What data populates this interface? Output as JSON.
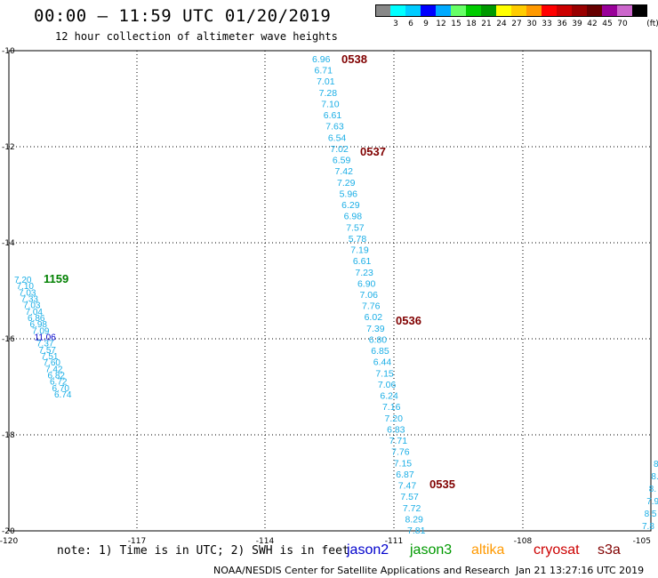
{
  "title": "00:00 – 11:59 UTC 01/20/2019",
  "subtitle": "12 hour collection of altimeter wave heights",
  "colorbar": {
    "colors": [
      "#888888",
      "#00ffff",
      "#00ccff",
      "#0000ff",
      "#00aaff",
      "#66ff66",
      "#00cc00",
      "#009900",
      "#ffff00",
      "#ffcc00",
      "#ff9900",
      "#ff0000",
      "#cc0000",
      "#990000",
      "#660000",
      "#990099",
      "#cc66cc",
      "#000000"
    ],
    "labels": [
      "3",
      "6",
      "9",
      "12",
      "15",
      "18",
      "21",
      "24",
      "27",
      "30",
      "33",
      "36",
      "39",
      "42",
      "45",
      "70"
    ],
    "unit": "(ft)"
  },
  "axes": {
    "lon_ticks": [
      "-120",
      "-117",
      "-114",
      "-111",
      "-108",
      "-105"
    ],
    "lat_ticks": [
      "-10",
      "-12",
      "-14",
      "-16",
      "-18",
      "-20"
    ]
  },
  "swaths": [
    {
      "color": "#1aaee6",
      "values": [
        "6.96",
        "6.71",
        "7.01",
        "7.28",
        "7.10",
        "6.61",
        "7.63",
        "6.54",
        "7.02",
        "6.59",
        "7.42",
        "7.29",
        "5.96",
        "6.29",
        "6.98",
        "7.57",
        "5.78",
        "7.19",
        "6.61",
        "7.23",
        "6.90",
        "7.06",
        "7.76",
        "6.02",
        "7.39",
        "6.80",
        "6.85",
        "6.44",
        "7.15",
        "7.06",
        "6.24",
        "7.16",
        "7.20",
        "6.83",
        "7.71",
        "7.76",
        "7.15",
        "6.87",
        "7.47",
        "7.57",
        "7.72",
        "8.29",
        "7.81"
      ]
    },
    {
      "color": "#1aaee6",
      "values": [
        "7.20",
        "7.10",
        "7.03",
        "7.33",
        "7.03",
        "7.04",
        "6.86",
        "6.98",
        "7.09",
        "11.06",
        "7.37",
        "7.57",
        "7.51",
        "7.60",
        "7.42",
        "6.82",
        "6.72",
        "6.70",
        "6.74"
      ]
    },
    {
      "color": "#1aaee6",
      "values": [
        "8.",
        "8.",
        "8.",
        "7.9",
        "8.5",
        "7.8"
      ]
    }
  ],
  "time_labels": [
    {
      "text": "0538",
      "color": "#800000"
    },
    {
      "text": "0537",
      "color": "#800000"
    },
    {
      "text": "0536",
      "color": "#800000"
    },
    {
      "text": "0535",
      "color": "#800000"
    },
    {
      "text": "1159",
      "color": "#008000"
    }
  ],
  "note": "note: 1) Time is in UTC; 2) SWH is in feet",
  "satellites": [
    {
      "name": "jason2",
      "color": "#0000cc"
    },
    {
      "name": "jason3",
      "color": "#009900"
    },
    {
      "name": "altika",
      "color": "#ff9900"
    },
    {
      "name": "cryosat",
      "color": "#cc0000"
    },
    {
      "name": "s3a",
      "color": "#800000"
    }
  ],
  "footer_left": "NOAA/NESDIS Center for Satellite Applications and Research",
  "footer_right": "Jan 21 13:27:16 UTC 2019"
}
